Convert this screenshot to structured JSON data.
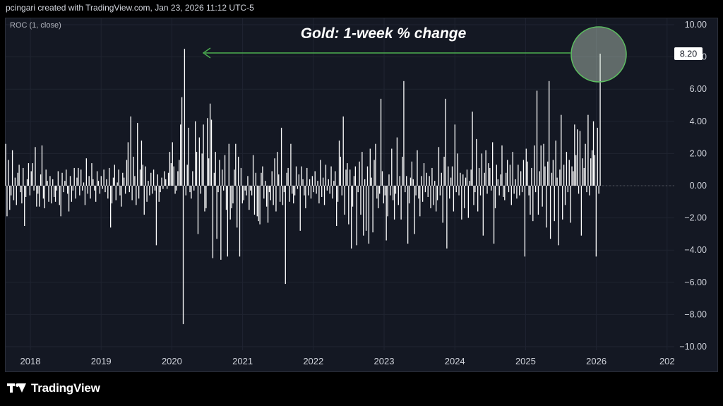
{
  "header": {
    "caption": "pcingari created with TradingView.com, Jan 23, 2026 11:12 UTC-5"
  },
  "indicator": {
    "label": "ROC (1, close)"
  },
  "footer": {
    "brand": "TradingView",
    "logo_icon": "tradingview-logo-icon"
  },
  "colors": {
    "background": "#000000",
    "panel": "#141823",
    "bars": "#ffffff",
    "annotation": "#4caf50",
    "last_value_bg": "#ffffff",
    "last_value_text": "#131722"
  },
  "chart_data": {
    "type": "bar",
    "title": "Gold: 1-week % change",
    "xlabel": "",
    "ylabel": "",
    "ylim": [
      -10,
      10
    ],
    "y_ticks": [
      "10.00",
      "8.00",
      "6.00",
      "4.00",
      "2.00",
      "0.00",
      "−2.00",
      "−4.00",
      "−6.00",
      "−8.00",
      "−10.00"
    ],
    "x_ticks": [
      "2018",
      "2019",
      "2020",
      "2021",
      "2022",
      "2023",
      "2024",
      "2025",
      "2026",
      "202"
    ],
    "x_range": [
      "2017-09",
      "2026-12"
    ],
    "last_value_label": "8.20",
    "last_value": 8.2,
    "grid": true,
    "values": [
      2.6,
      -1.9,
      1.6,
      -1.5,
      -0.6,
      2.2,
      -0.9,
      0.5,
      -1.2,
      0.8,
      1.3,
      -0.4,
      -1.1,
      1.1,
      -2.5,
      -0.7,
      0.4,
      1.4,
      -0.6,
      0.9,
      1.4,
      -0.3,
      2.4,
      -1.3,
      -0.5,
      -1.3,
      0.7,
      2.5,
      -0.8,
      -1.4,
      1.0,
      0.3,
      -1.0,
      0.6,
      -1.1,
      0.4,
      -0.7,
      -1.0,
      -0.3,
      0.9,
      -1.2,
      -1.9,
      0.8,
      -0.4,
      0.3,
      1.0,
      -0.5,
      -1.6,
      0.6,
      -1.0,
      -0.3,
      1.1,
      -0.8,
      0.5,
      1.1,
      -0.6,
      1.0,
      -0.3,
      0.2,
      -1.2,
      1.7,
      -0.5,
      0.6,
      -0.8,
      1.4,
      0.4,
      -0.3,
      -1.0,
      0.9,
      0.3,
      -0.5,
      0.6,
      -0.2,
      1.0,
      -0.4,
      0.4,
      -0.8,
      1.1,
      -2.6,
      -1.1,
      0.5,
      1.3,
      -0.9,
      0.2,
      1.0,
      -0.6,
      -1.3,
      0.8,
      0.5,
      -0.5,
      1.6,
      2.7,
      -0.4,
      4.3,
      -0.9,
      1.8,
      0.6,
      -1.2,
      3.9,
      -0.8,
      1.0,
      2.8,
      1.3,
      -1.8,
      1.2,
      -1.0,
      0.3,
      -0.6,
      0.8,
      -0.5,
      1.0,
      -0.3,
      -3.7,
      0.7,
      -1.0,
      -0.4,
      0.5,
      -0.2,
      0.9,
      0.4,
      -0.2,
      0.8,
      2.1,
      1.4,
      2.7,
      1.2,
      -0.5,
      -0.3,
      0.9,
      1.6,
      3.8,
      5.5,
      -8.6,
      8.5,
      -0.6,
      1.3,
      3.6,
      -0.4,
      -0.8,
      0.9,
      -0.3,
      4.0,
      2.1,
      -3.0,
      3.0,
      -0.5,
      2.0,
      3.8,
      -1.6,
      -1.4,
      4.2,
      1.7,
      5.1,
      4.1,
      -4.5,
      0.8,
      2.1,
      -3.3,
      -0.4,
      1.6,
      -4.6,
      1.0,
      -0.3,
      1.9,
      -1.5,
      -4.4,
      2.6,
      -2.1,
      -1.4,
      -1.1,
      1.0,
      2.6,
      -2.6,
      1.8,
      -4.4,
      1.1,
      -1.1,
      -0.9,
      -0.3,
      -0.6,
      0.6,
      -1.5,
      -0.3,
      -0.6,
      1.9,
      -1.8,
      0.8,
      -1.9,
      -2.2,
      -2.4,
      0.8,
      1.2,
      -0.8,
      0.3,
      -1.3,
      -2.3,
      -0.4,
      -0.9,
      0.9,
      -1.2,
      1.7,
      -1.6,
      2.1,
      0.7,
      -1.0,
      3.6,
      -1.2,
      -0.4,
      -6.1,
      0.8,
      1.1,
      -1.0,
      2.6,
      -0.5,
      -1.1,
      -0.6,
      1.2,
      -0.2,
      0.7,
      -2.8,
      1.2,
      0.4,
      -0.6,
      -1.4,
      1.1,
      -0.6,
      0.4,
      -0.8,
      0.6,
      -0.4,
      0.9,
      -0.5,
      0.3,
      -1.1,
      1.6,
      -0.7,
      0.5,
      -1.2,
      1.3,
      -0.3,
      0.4,
      -0.5,
      1.2,
      -0.8,
      0.3,
      0.9,
      -2.5,
      -1.0,
      2.8,
      1.8,
      -0.6,
      4.3,
      -1.8,
      1.0,
      1.4,
      -2.4,
      1.0,
      -3.9,
      -1.3,
      0.6,
      1.2,
      -3.7,
      -0.4,
      1.5,
      -1.8,
      2.1,
      -3.1,
      0.4,
      -2.8,
      1.2,
      -3.6,
      2.3,
      0.5,
      -2.9,
      1.6,
      2.6,
      -0.8,
      -1.4,
      -0.5,
      5.4,
      0.9,
      -1.1,
      -0.6,
      -3.4,
      -1.9,
      0.7,
      -0.6,
      2.3,
      -0.9,
      -2.1,
      -0.5,
      3.0,
      -1.2,
      0.6,
      -2.1,
      1.8,
      6.5,
      -0.4,
      0.6,
      -3.6,
      -1.1,
      0.5,
      1.5,
      0.4,
      -3.0,
      -0.6,
      2.2,
      -0.8,
      -1.9,
      0.6,
      -1.0,
      1.4,
      -0.4,
      0.8,
      -0.7,
      0.6,
      -1.4,
      1.1,
      -1.2,
      0.3,
      -1.6,
      -0.9,
      2.4,
      -0.6,
      0.8,
      -2.3,
      1.8,
      5.4,
      -3.9,
      1.2,
      -0.8,
      0.5,
      1.2,
      -1.6,
      3.8,
      -0.4,
      2.0,
      -0.6,
      0.8,
      -2.1,
      0.7,
      -1.4,
      0.5,
      1.0,
      -2.0,
      0.3,
      1.0,
      4.6,
      -1.2,
      -0.4,
      2.9,
      -1.6,
      1.1,
      -0.6,
      2.0,
      -3.1,
      0.8,
      2.2,
      -0.5,
      1.4,
      1.1,
      -0.3,
      2.7,
      -3.6,
      -1.4,
      1.3,
      0.4,
      -0.6,
      0.7,
      2.5,
      -0.7,
      -0.9,
      0.8,
      1.6,
      -0.4,
      1.3,
      -1.2,
      2.1,
      -0.5,
      0.4,
      -0.8,
      1.3,
      -0.6,
      0.9,
      -0.4,
      1.6,
      -4.4,
      2.3,
      1.5,
      -0.6,
      -1.8,
      1.1,
      -2.2,
      2.5,
      -0.4,
      5.9,
      -1.8,
      0.9,
      2.5,
      -1.3,
      2.6,
      1.2,
      -2.6,
      1.5,
      6.5,
      -3.3,
      0.8,
      1.6,
      -2.2,
      2.8,
      0.5,
      -3.7,
      1.0,
      4.4,
      -2.1,
      1.3,
      -1.2,
      2.1,
      -0.4,
      1.6,
      -2.3,
      1.2,
      0.9,
      3.8,
      1.9,
      3.5,
      -0.5,
      3.4,
      -3.1,
      1.7,
      1.1,
      2.6,
      -0.4,
      4.4,
      -0.6,
      1.7,
      2.2,
      4.0,
      1.9,
      -4.4,
      3.6,
      -0.5,
      8.2
    ]
  }
}
